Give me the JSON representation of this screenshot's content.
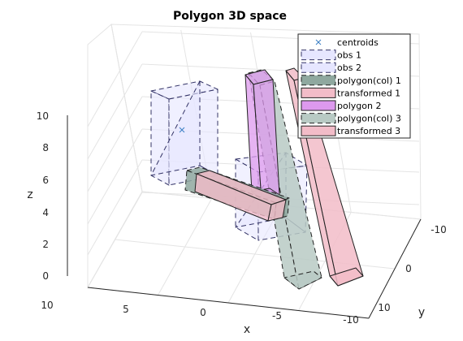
{
  "chart_data": {
    "type": "3d-polygon",
    "title": "Polygon 3D space",
    "xlabel": "x",
    "ylabel": "y",
    "zlabel": "z",
    "xlim": [
      -10,
      10
    ],
    "ylim": [
      -10,
      10
    ],
    "zlim": [
      -1,
      11
    ],
    "x_ticks": [
      "10",
      "5",
      "0",
      "-5",
      "-10"
    ],
    "y_ticks": [
      "-10",
      "0",
      "10"
    ],
    "z_ticks": [
      "0",
      "2",
      "4",
      "6",
      "8",
      "10"
    ],
    "grid": true,
    "legend_location": "top-right",
    "legend": [
      {
        "label": "centroids",
        "marker": "x",
        "color": "#3a7fc4"
      },
      {
        "label": "obs 1",
        "face": "#e6e6ff",
        "edge": "#333366",
        "dashed": true
      },
      {
        "label": "obs 2",
        "face": "#e6e6ff",
        "edge": "#333366",
        "dashed": true
      },
      {
        "label": "polygon(col) 1",
        "face": "#8fa89f",
        "edge": "#222222",
        "dashed": true
      },
      {
        "label": "transformed 1",
        "face": "#f2bcc8",
        "edge": "#222222",
        "dashed": false
      },
      {
        "label": "polygon 2",
        "face": "#dd99ee",
        "edge": "#222222",
        "dashed": false
      },
      {
        "label": "polygon(col) 3",
        "face": "#b8cac4",
        "edge": "#222222",
        "dashed": true
      },
      {
        "label": "transformed 3",
        "face": "#f2bcc8",
        "edge": "#222222",
        "dashed": false
      }
    ]
  }
}
